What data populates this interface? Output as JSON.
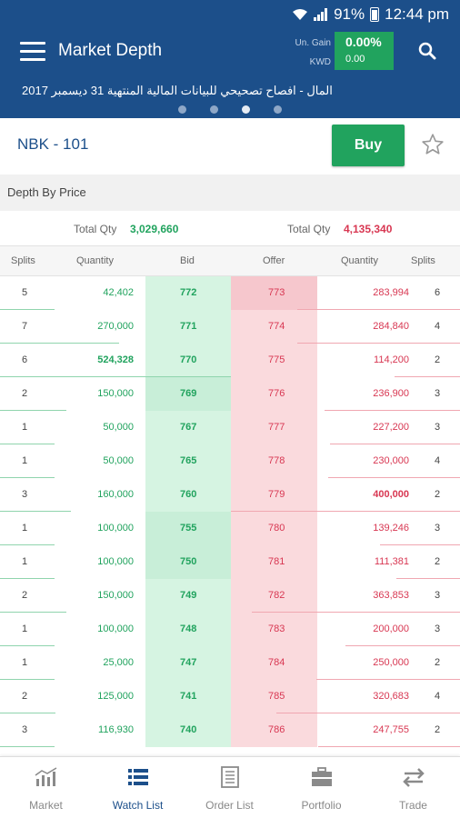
{
  "status_bar": {
    "battery": "91%",
    "time": "12:44 pm"
  },
  "app_bar": {
    "title": "Market Depth",
    "gain_label": "Un. Gain",
    "currency_label": "KWD",
    "gain_percent": "0.00%",
    "gain_value": "0.00"
  },
  "ticker": {
    "text": "المال - افصاح تصحيحي للبيانات المالية المنتهية 31 ديسمبر 2017",
    "dots": 4,
    "active_dot": 2
  },
  "symbol": {
    "name": "NBK - 101",
    "buy_label": "Buy"
  },
  "section": {
    "title": "Depth By Price"
  },
  "totals": {
    "bid_label": "Total Qty",
    "bid_value": "3,029,660",
    "offer_label": "Total Qty",
    "offer_value": "4,135,340"
  },
  "columns": [
    "Splits",
    "Quantity",
    "Bid",
    "Offer",
    "Quantity",
    "Splits"
  ],
  "rows": [
    {
      "bid_splits": "5",
      "bid_qty": "42,402",
      "bid": "772",
      "offer": "773",
      "offer_qty": "283,994",
      "offer_splits": "6"
    },
    {
      "bid_splits": "7",
      "bid_qty": "270,000",
      "bid": "771",
      "offer": "774",
      "offer_qty": "284,840",
      "offer_splits": "4"
    },
    {
      "bid_splits": "6",
      "bid_qty": "524,328",
      "bid": "770",
      "offer": "775",
      "offer_qty": "114,200",
      "offer_splits": "2"
    },
    {
      "bid_splits": "2",
      "bid_qty": "150,000",
      "bid": "769",
      "offer": "776",
      "offer_qty": "236,900",
      "offer_splits": "3"
    },
    {
      "bid_splits": "1",
      "bid_qty": "50,000",
      "bid": "767",
      "offer": "777",
      "offer_qty": "227,200",
      "offer_splits": "3"
    },
    {
      "bid_splits": "1",
      "bid_qty": "50,000",
      "bid": "765",
      "offer": "778",
      "offer_qty": "230,000",
      "offer_splits": "4"
    },
    {
      "bid_splits": "3",
      "bid_qty": "160,000",
      "bid": "760",
      "offer": "779",
      "offer_qty": "400,000",
      "offer_splits": "2"
    },
    {
      "bid_splits": "1",
      "bid_qty": "100,000",
      "bid": "755",
      "offer": "780",
      "offer_qty": "139,246",
      "offer_splits": "3"
    },
    {
      "bid_splits": "1",
      "bid_qty": "100,000",
      "bid": "750",
      "offer": "781",
      "offer_qty": "111,381",
      "offer_splits": "2"
    },
    {
      "bid_splits": "2",
      "bid_qty": "150,000",
      "bid": "749",
      "offer": "782",
      "offer_qty": "363,853",
      "offer_splits": "3"
    },
    {
      "bid_splits": "1",
      "bid_qty": "100,000",
      "bid": "748",
      "offer": "783",
      "offer_qty": "200,000",
      "offer_splits": "3"
    },
    {
      "bid_splits": "1",
      "bid_qty": "25,000",
      "bid": "747",
      "offer": "784",
      "offer_qty": "250,000",
      "offer_splits": "2"
    },
    {
      "bid_splits": "2",
      "bid_qty": "125,000",
      "bid": "741",
      "offer": "785",
      "offer_qty": "320,683",
      "offer_splits": "4"
    },
    {
      "bid_splits": "3",
      "bid_qty": "116,930",
      "bid": "740",
      "offer": "786",
      "offer_qty": "247,755",
      "offer_splits": "2"
    }
  ],
  "bottom_nav": [
    {
      "label": "Market",
      "icon": "chart-icon"
    },
    {
      "label": "Watch List",
      "icon": "list-icon"
    },
    {
      "label": "Order List",
      "icon": "document-icon"
    },
    {
      "label": "Portfolio",
      "icon": "briefcase-icon"
    },
    {
      "label": "Trade",
      "icon": "swap-icon"
    }
  ],
  "colors": {
    "primary": "#1c4f8a",
    "buy": "#21a35e",
    "sell": "#d83752"
  }
}
